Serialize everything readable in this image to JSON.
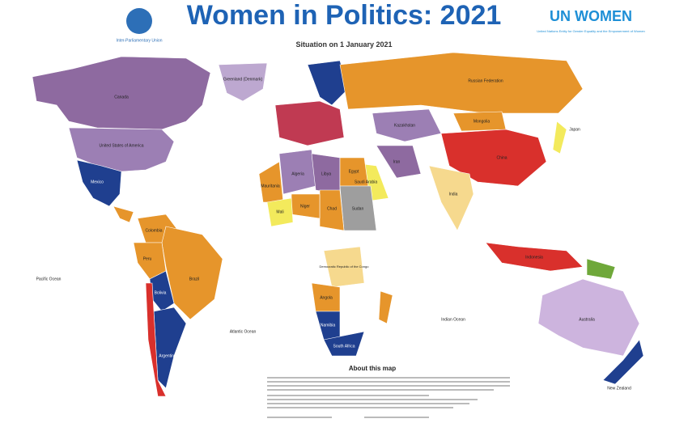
{
  "header": {
    "title": "Women in Politics: 2021",
    "subtitle": "Situation on 1 January 2021",
    "left_logo": "Inter-Parliamentary Union",
    "right_logo": "UN WOMEN",
    "right_logo_caption": "United Nations Entity for Gender Equality and the Empowerment of Women"
  },
  "oceans": [
    "Pacific Ocean",
    "Atlantic Ocean",
    "Indian Ocean"
  ],
  "countries": [
    "Canada",
    "United States of America",
    "Mexico",
    "Greenland (Denmark)",
    "Brazil",
    "Argentina",
    "Colombia",
    "Peru",
    "Bolivia",
    "Russian Federation",
    "China",
    "Mongolia",
    "India",
    "Kazakhstan",
    "Algeria",
    "Libya",
    "Egypt",
    "Sudan",
    "Chad",
    "Niger",
    "Mali",
    "Mauritania",
    "Democratic Republic of the Congo",
    "Angola",
    "Namibia",
    "South Africa",
    "Saudi Arabia",
    "Iran",
    "Indonesia",
    "Australia",
    "New Zealand",
    "Japan"
  ],
  "footer": {
    "title": "About this map"
  }
}
